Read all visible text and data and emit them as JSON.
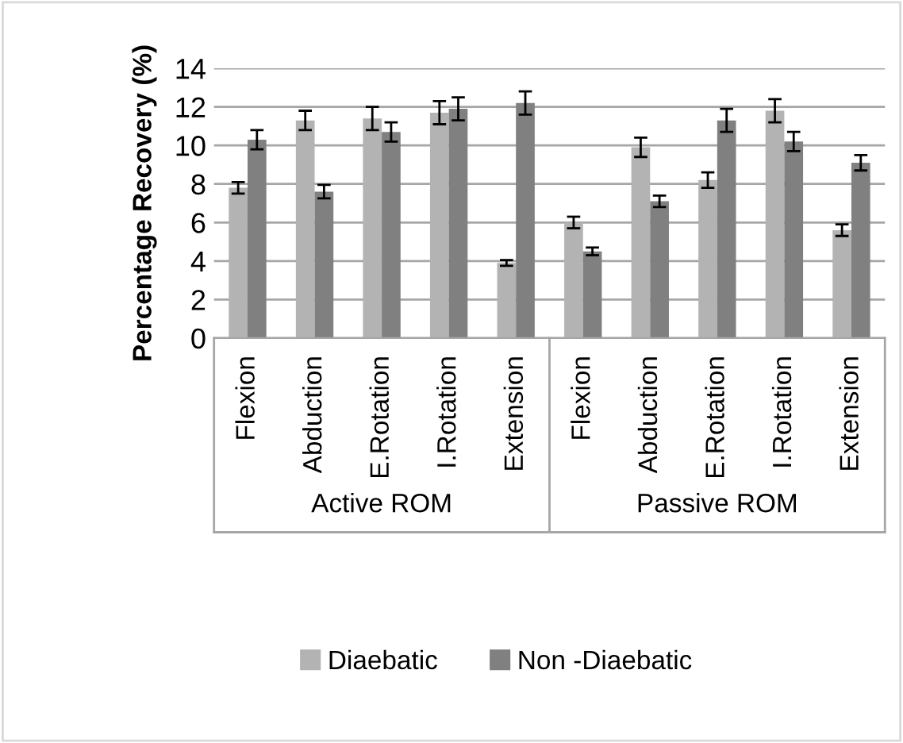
{
  "chart_data": {
    "type": "bar",
    "ylabel": "Percentage Recovery (%)",
    "categories": [
      "Flexion",
      "Abduction",
      "E.Rotation",
      "I.Rotation",
      "Extension",
      "Flexion",
      "Abduction",
      "E.Rotation",
      "I.Rotation",
      "Extension"
    ],
    "series": [
      {
        "name": "Diaebatic",
        "color": "#b3b3b3",
        "values": [
          7.8,
          11.3,
          11.4,
          11.7,
          3.9,
          6.0,
          9.9,
          8.2,
          11.8,
          5.6
        ],
        "errors": [
          0.3,
          0.5,
          0.6,
          0.6,
          0.15,
          0.3,
          0.5,
          0.4,
          0.6,
          0.3
        ]
      },
      {
        "name": "Non -Diaebatic",
        "color": "#808080",
        "values": [
          10.3,
          7.6,
          10.7,
          11.9,
          12.2,
          4.5,
          7.1,
          11.3,
          10.2,
          9.1
        ],
        "errors": [
          0.5,
          0.35,
          0.5,
          0.6,
          0.6,
          0.2,
          0.3,
          0.6,
          0.5,
          0.4
        ]
      }
    ],
    "annotations": [
      "Active ROM",
      "Passive ROM"
    ],
    "ylim": [
      0,
      14
    ],
    "yticks": [
      0,
      2,
      4,
      6,
      8,
      10,
      12,
      14
    ],
    "grid": "y",
    "legend": "bottom"
  }
}
